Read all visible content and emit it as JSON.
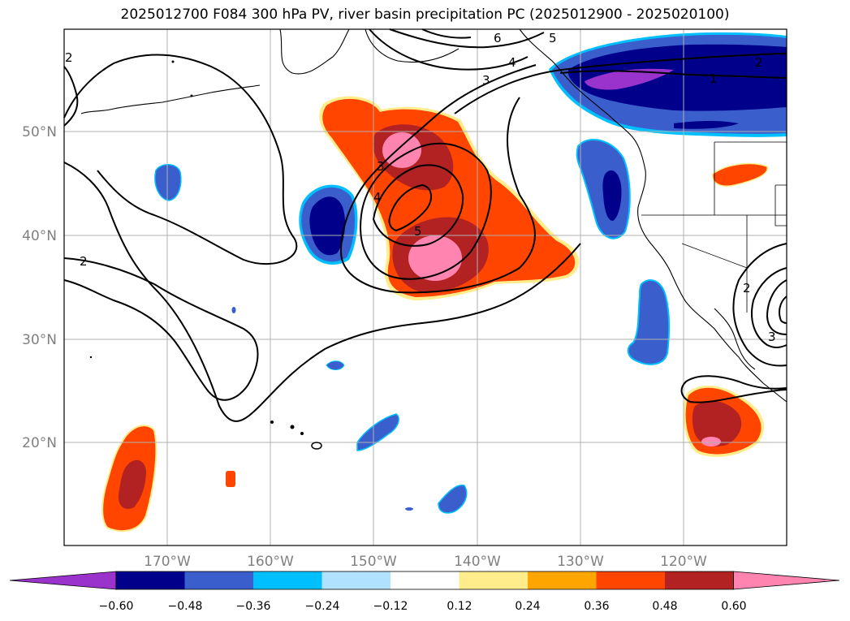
{
  "title": "2025012700 F084 300 hPa PV, river basin precipitation PC (2025012900 - 2025020100)",
  "lat_labels": [
    "50°N",
    "40°N",
    "30°N",
    "20°N"
  ],
  "lon_labels": [
    "170°W",
    "160°W",
    "150°W",
    "140°W",
    "130°W",
    "120°W"
  ],
  "contour_labels": [
    "1",
    "2",
    "2",
    "2",
    "2",
    "3",
    "3",
    "3",
    "4",
    "4",
    "5",
    "5",
    "6"
  ],
  "colorbar": {
    "colors": [
      "#9933cc",
      "#00008b",
      "#3a5fcd",
      "#00bfff",
      "#b0e2ff",
      "#ffffff",
      "#ffec8b",
      "#ffa500",
      "#ff4500",
      "#b22222",
      "#ff85b0"
    ],
    "tick_labels": [
      "−0.60",
      "−0.48",
      "−0.36",
      "−0.24",
      "−0.12",
      "0.12",
      "0.24",
      "0.36",
      "0.48",
      "0.60"
    ]
  },
  "colors": {
    "neg_light": "#00bfff",
    "neg_mid": "#3a5fcd",
    "neg_dark": "#00008b",
    "neg_extreme": "#9933cc",
    "pos_light": "#ffec8b",
    "pos_mid": "#ff4500",
    "pos_dark": "#b22222",
    "pos_extreme": "#ff85b0"
  }
}
